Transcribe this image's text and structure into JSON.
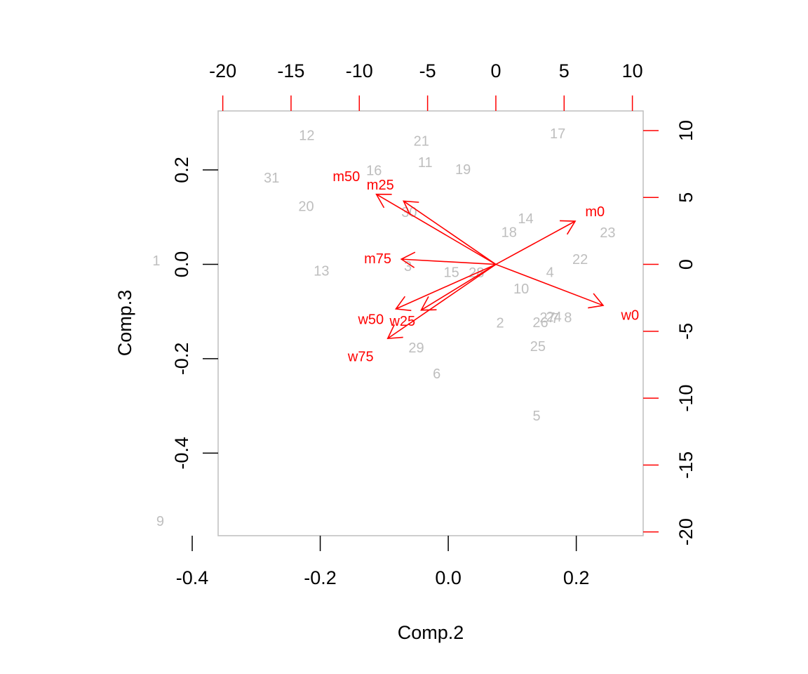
{
  "chart_data": {
    "type": "scatter",
    "subtype": "biplot",
    "xlabel": "Comp.2",
    "ylabel": "Comp.3",
    "xlim": [
      -0.3595,
      0.3045
    ],
    "ylim": [
      -0.575,
      0.325
    ],
    "x_ticks": [
      "-0.4",
      "-0.2",
      "0.0",
      "0.2"
    ],
    "y_ticks": [
      "-0.4",
      "-0.2",
      "0.0",
      "0.2"
    ],
    "top_axis_ticks": [
      "-20",
      "-15",
      "-10",
      "-5",
      "0",
      "5",
      "10"
    ],
    "right_axis_ticks": [
      "-20",
      "-15",
      "-10",
      "-5",
      "0",
      "5",
      "10"
    ],
    "secondary_scale": {
      "xlim": [
        -20.34,
        10.79
      ],
      "ylim": [
        -20.28,
        11.47
      ]
    },
    "colors": {
      "points": "#bebebe",
      "arrows": "#ff0000",
      "axis": "#000000",
      "box": "#bebebe"
    },
    "points": [
      {
        "label": "1",
        "x": -0.456,
        "y": 0.007
      },
      {
        "label": "2",
        "x": 0.081,
        "y": -0.125
      },
      {
        "label": "3",
        "x": -0.063,
        "y": -0.005
      },
      {
        "label": "4",
        "x": 0.159,
        "y": -0.018
      },
      {
        "label": "5",
        "x": 0.138,
        "y": -0.322
      },
      {
        "label": "6",
        "x": -0.018,
        "y": -0.233
      },
      {
        "label": "7",
        "x": 0.167,
        "y": -0.115
      },
      {
        "label": "8",
        "x": 0.187,
        "y": -0.114
      },
      {
        "label": "9",
        "x": -0.45,
        "y": -0.545
      },
      {
        "label": "10",
        "x": 0.114,
        "y": -0.053
      },
      {
        "label": "11",
        "x": -0.036,
        "y": 0.215
      },
      {
        "label": "12",
        "x": -0.221,
        "y": 0.272
      },
      {
        "label": "13",
        "x": -0.198,
        "y": -0.015
      },
      {
        "label": "14",
        "x": 0.121,
        "y": 0.096
      },
      {
        "label": "15",
        "x": 0.005,
        "y": -0.018
      },
      {
        "label": "16",
        "x": -0.116,
        "y": 0.198
      },
      {
        "label": "17",
        "x": 0.171,
        "y": 0.276
      },
      {
        "label": "18",
        "x": 0.095,
        "y": 0.067
      },
      {
        "label": "19",
        "x": 0.023,
        "y": 0.2
      },
      {
        "label": "20",
        "x": -0.222,
        "y": 0.122
      },
      {
        "label": "21",
        "x": -0.042,
        "y": 0.26
      },
      {
        "label": "22",
        "x": 0.206,
        "y": 0.01
      },
      {
        "label": "23",
        "x": 0.249,
        "y": 0.066
      },
      {
        "label": "24",
        "x": 0.165,
        "y": -0.112
      },
      {
        "label": "25",
        "x": 0.14,
        "y": -0.175
      },
      {
        "label": "26",
        "x": 0.144,
        "y": -0.124
      },
      {
        "label": "27",
        "x": 0.155,
        "y": -0.114
      },
      {
        "label": "28",
        "x": 0.044,
        "y": -0.019
      },
      {
        "label": "29",
        "x": -0.05,
        "y": -0.178
      },
      {
        "label": "30",
        "x": -0.061,
        "y": 0.109
      },
      {
        "label": "31",
        "x": -0.276,
        "y": 0.182
      }
    ],
    "loadings": [
      {
        "label": "w0",
        "x": 7.86,
        "y": -3.07
      },
      {
        "label": "m0",
        "x": 5.81,
        "y": 3.23
      },
      {
        "label": "m25",
        "x": -6.76,
        "y": 4.73
      },
      {
        "label": "m50",
        "x": -8.75,
        "y": 5.24
      },
      {
        "label": "m75",
        "x": -6.92,
        "y": 0.39
      },
      {
        "label": "w25",
        "x": -5.47,
        "y": -3.42
      },
      {
        "label": "w50",
        "x": -7.32,
        "y": -3.33
      },
      {
        "label": "w75",
        "x": -7.92,
        "y": -5.54
      }
    ],
    "loading_label_positions": {
      "w0": {
        "x": 9.83,
        "y": -3.84
      },
      "m0": {
        "x": 7.26,
        "y": 3.9
      },
      "m25": {
        "x": -8.46,
        "y": 5.91
      },
      "m50": {
        "x": -10.95,
        "y": 6.55
      },
      "m75": {
        "x": -8.65,
        "y": 0.4
      },
      "w25": {
        "x": -6.84,
        "y": -4.27
      },
      "w50": {
        "x": -9.15,
        "y": -4.15
      },
      "w75": {
        "x": -9.9,
        "y": -6.93
      }
    }
  }
}
